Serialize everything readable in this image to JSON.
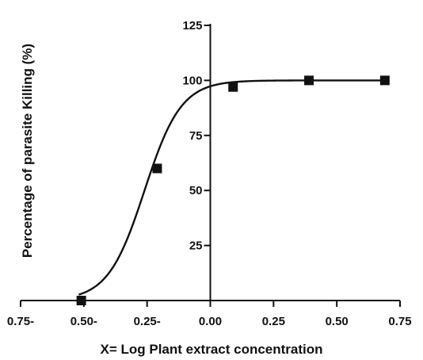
{
  "chart_data": {
    "type": "scatter",
    "xlabel": "X= Log Plant extract concentration",
    "ylabel": "Percentage of parasite Killing (%)",
    "xlim": [
      -0.75,
      0.75
    ],
    "ylim": [
      0,
      125
    ],
    "x_ticks": [
      -0.75,
      -0.5,
      -0.25,
      0.0,
      0.25,
      0.5,
      0.75
    ],
    "x_tick_labels": [
      "0.75-",
      "0.50-",
      "0.25-",
      "0.00",
      "0.25",
      "0.50",
      "0.75"
    ],
    "y_ticks": [
      25,
      50,
      75,
      100,
      125
    ],
    "y_tick_labels": [
      "25",
      "50",
      "75",
      "100",
      "125"
    ],
    "grid": false,
    "points": [
      {
        "x": -0.51,
        "y": 0
      },
      {
        "x": -0.21,
        "y": 60
      },
      {
        "x": 0.09,
        "y": 97
      },
      {
        "x": 0.39,
        "y": 100
      },
      {
        "x": 0.69,
        "y": 100
      }
    ],
    "fit_curve": {
      "type": "sigmoid",
      "bottom": 0,
      "top": 100,
      "log_ec50": -0.26,
      "hill_slope": 6.0
    }
  }
}
